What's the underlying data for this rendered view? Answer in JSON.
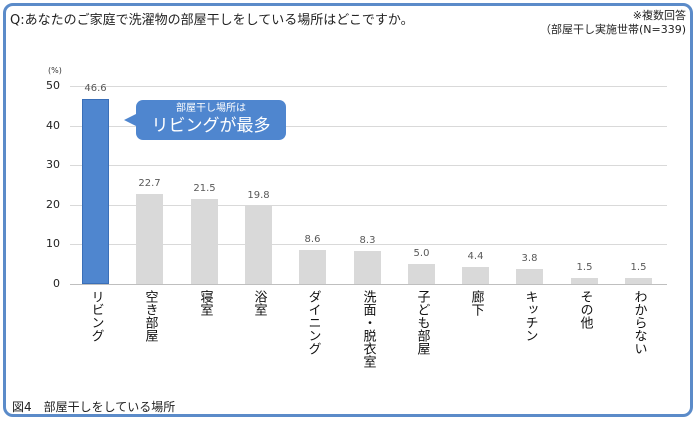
{
  "header": {
    "question": "Q:あなたのご家庭で洗濯物の部屋干しをしている場所はどこですか。",
    "note_line1": "※複数回答",
    "note_line2": "（部屋干し実施世帯(N=339)"
  },
  "footer": {
    "caption": "図4　部屋干しをしている場所"
  },
  "callout": {
    "line1": "部屋干し場所は",
    "line2": "リビングが最多"
  },
  "colors": {
    "frame": "#5b8bc9",
    "highlight_bar": "#4f86cf",
    "other_bars": "#d9d9d9",
    "gridline": "#d9d9d9"
  },
  "axis": {
    "unit": "(%)",
    "ticks": [
      "50",
      "40",
      "30",
      "20",
      "10",
      "0"
    ]
  },
  "chart_data": {
    "type": "bar",
    "title": "部屋干しをしている場所",
    "xlabel": "",
    "ylabel": "(%)",
    "ylim": [
      0,
      50
    ],
    "yticks": [
      0,
      10,
      20,
      30,
      40,
      50
    ],
    "grid": true,
    "legend": null,
    "categories": [
      "リビング",
      "空き部屋",
      "寝室",
      "浴室",
      "ダイニング",
      "洗面・脱衣室",
      "子ども部屋",
      "廊下",
      "キッチン",
      "その他",
      "わからない"
    ],
    "values": [
      46.6,
      22.7,
      21.5,
      19.8,
      8.6,
      8.3,
      5.0,
      4.4,
      3.8,
      1.5,
      1.5
    ],
    "value_labels": [
      "46.6",
      "22.7",
      "21.5",
      "19.8",
      "8.6",
      "8.3",
      "5.0",
      "4.4",
      "3.8",
      "1.5",
      "1.5"
    ],
    "highlighted_category": "リビング",
    "annotation": "部屋干し場所は リビングが最多",
    "subtitle": "※複数回答（部屋干し実施世帯(N=339)"
  }
}
